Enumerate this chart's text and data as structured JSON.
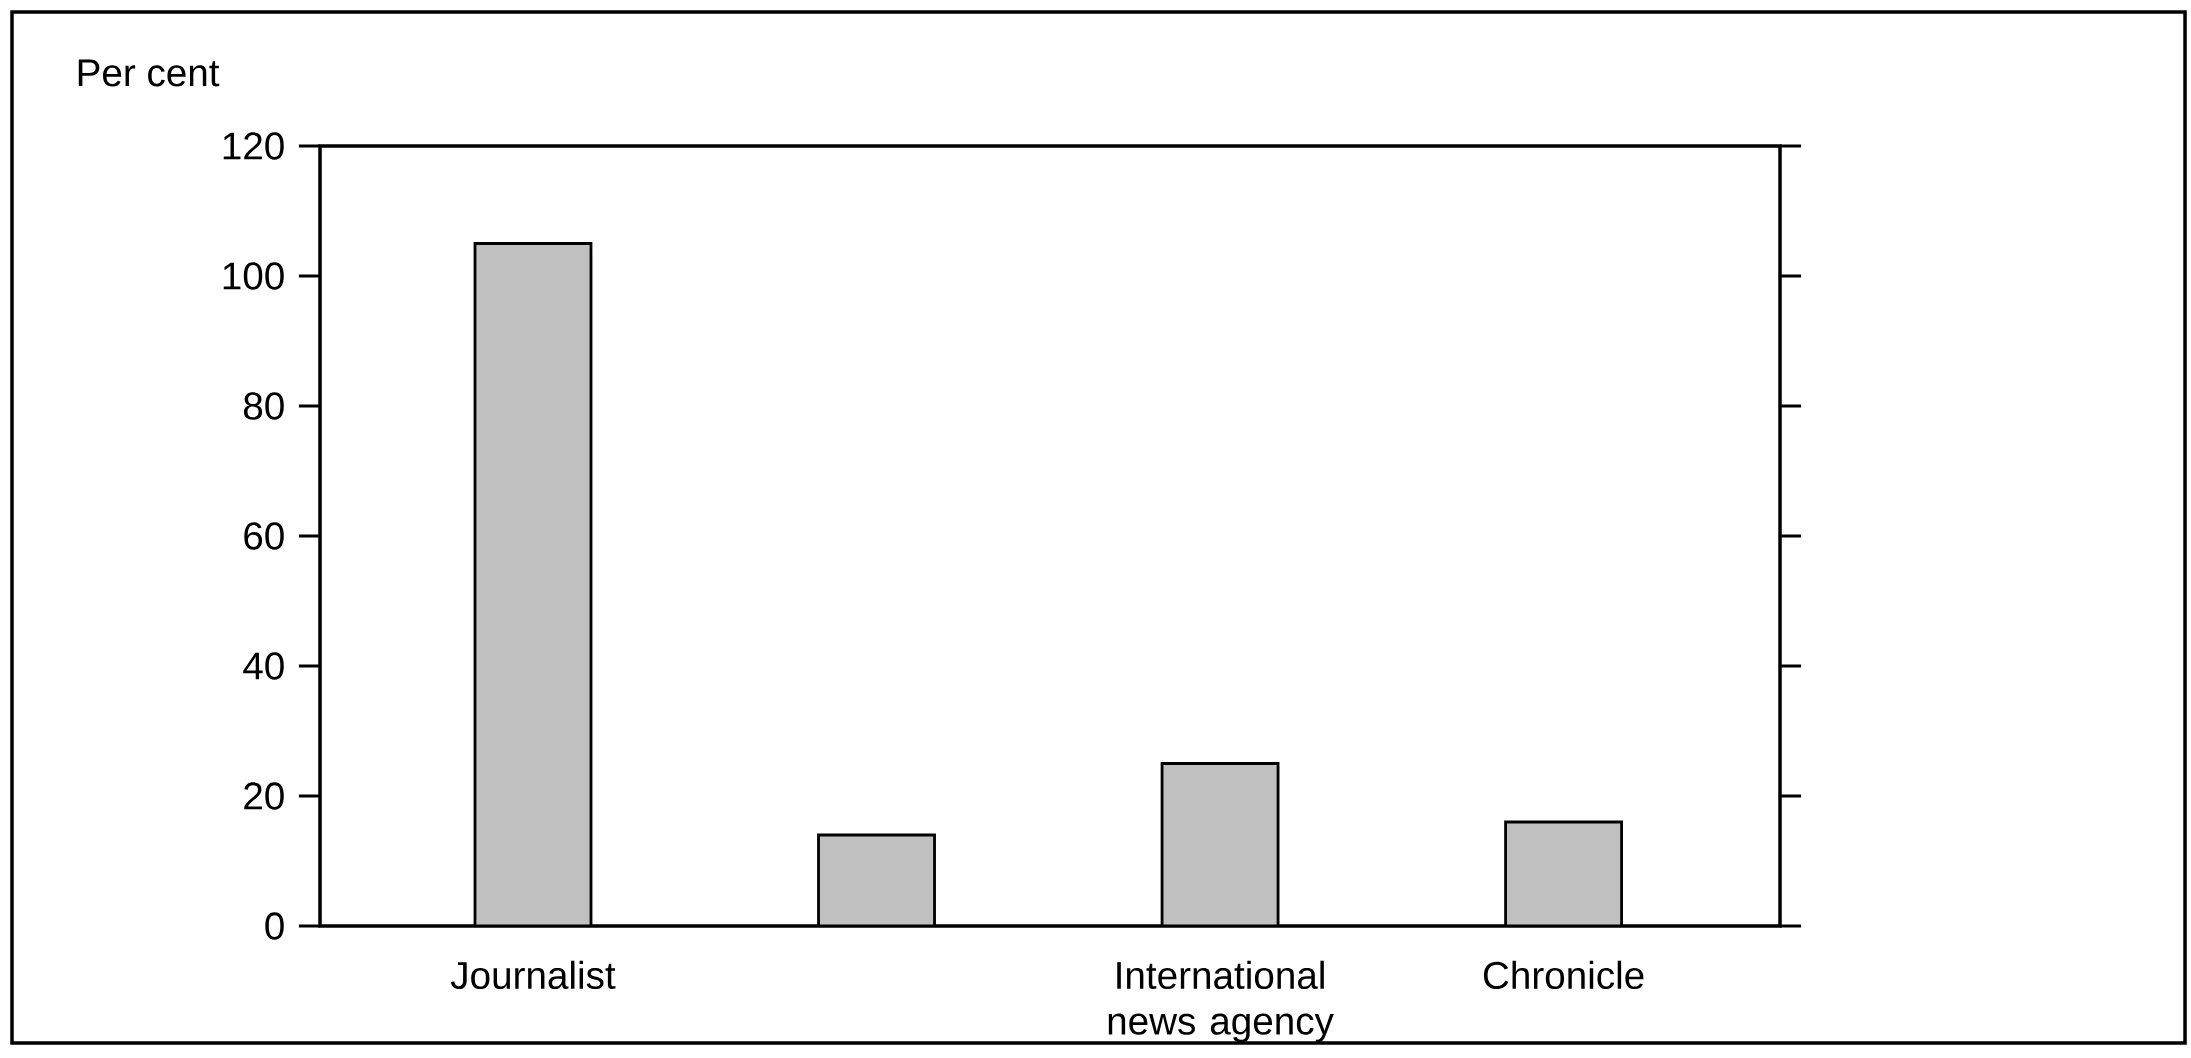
{
  "chart_data": {
    "type": "bar",
    "ylabel": "Per cent",
    "categories": [
      "Journalist",
      null,
      "International news agency",
      "Chronicle"
    ],
    "values": [
      105,
      14,
      25,
      16
    ],
    "color": "#c0c0c0",
    "ylim": [
      0,
      120
    ],
    "yticks": [
      0,
      20,
      40,
      60,
      80,
      100,
      120
    ],
    "grid": false
  }
}
